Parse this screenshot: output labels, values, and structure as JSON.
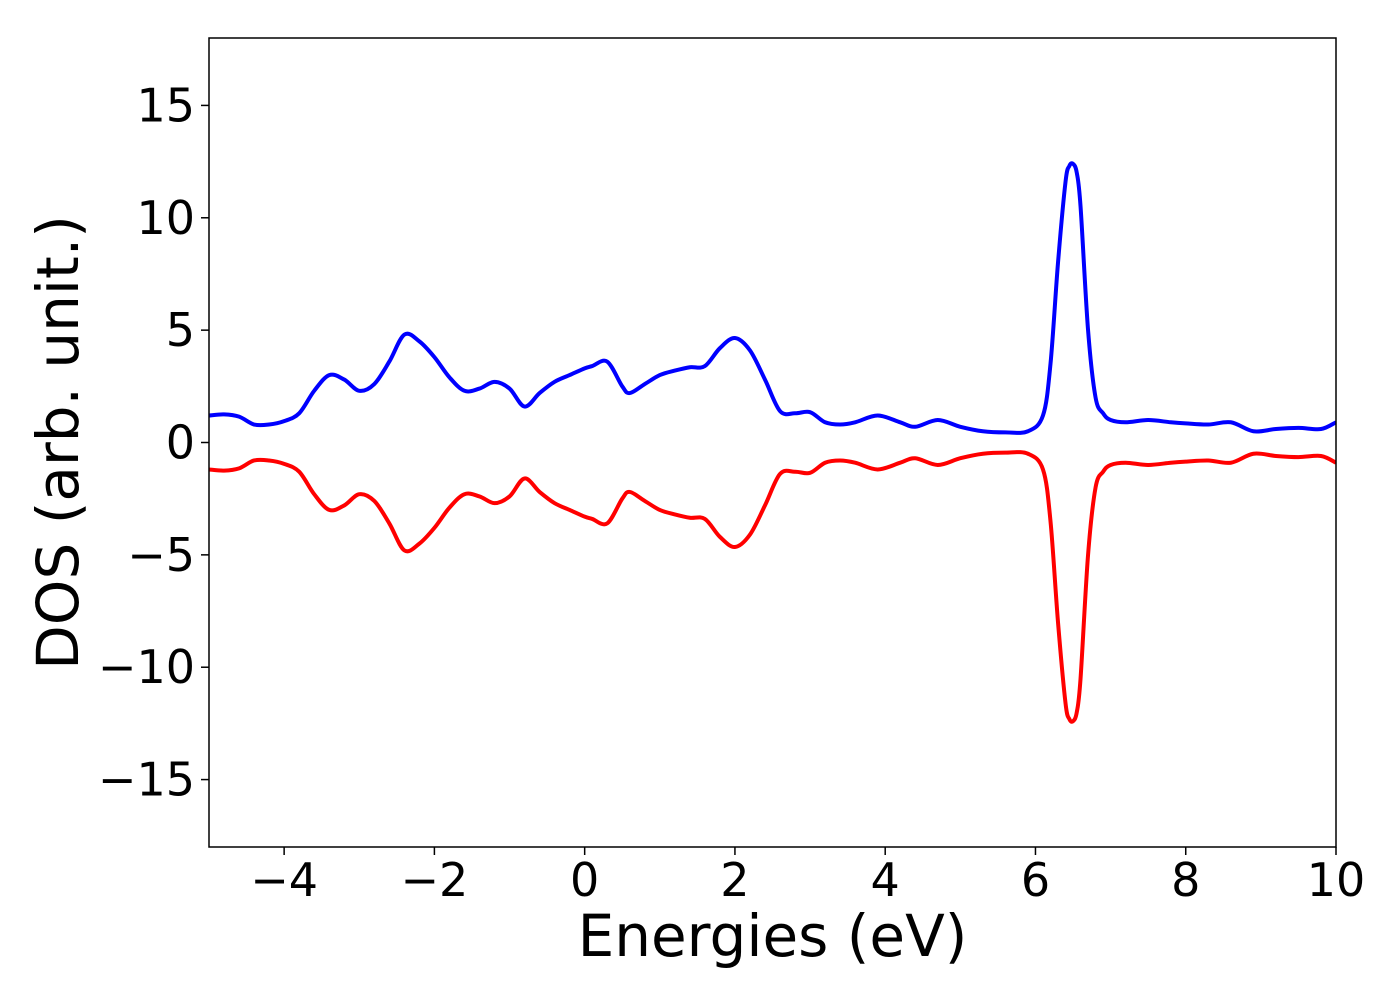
{
  "chart_data": {
    "type": "line",
    "title": "",
    "xlabel": "Energies (eV)",
    "ylabel": "DOS (arb. unit.)",
    "xlim": [
      -5,
      10
    ],
    "ylim": [
      -18,
      18
    ],
    "xticks": [
      -4,
      -2,
      0,
      2,
      4,
      6,
      8,
      10
    ],
    "xtick_labels": [
      "−4",
      "−2",
      "0",
      "2",
      "4",
      "6",
      "8",
      "10"
    ],
    "yticks": [
      -15,
      -10,
      -5,
      0,
      5,
      10,
      15
    ],
    "ytick_labels": [
      "−15",
      "−10",
      "−5",
      "0",
      "5",
      "10",
      "15"
    ],
    "grid": false,
    "legend": false,
    "series": [
      {
        "color": "#0000ff",
        "x": [
          -5.0,
          -4.8,
          -4.6,
          -4.4,
          -4.2,
          -4.0,
          -3.8,
          -3.6,
          -3.4,
          -3.2,
          -3.0,
          -2.8,
          -2.6,
          -2.4,
          -2.2,
          -2.0,
          -1.8,
          -1.6,
          -1.4,
          -1.2,
          -1.0,
          -0.8,
          -0.6,
          -0.4,
          -0.2,
          0.0,
          0.1,
          0.3,
          0.5,
          0.6,
          0.8,
          1.0,
          1.2,
          1.4,
          1.6,
          1.8,
          2.0,
          2.2,
          2.4,
          2.6,
          2.8,
          3.0,
          3.2,
          3.4,
          3.6,
          3.9,
          4.2,
          4.4,
          4.7,
          5.0,
          5.3,
          5.6,
          5.9,
          6.1,
          6.2,
          6.3,
          6.4,
          6.45,
          6.5,
          6.55,
          6.6,
          6.7,
          6.8,
          6.9,
          7.0,
          7.2,
          7.5,
          7.8,
          8.0,
          8.3,
          8.6,
          8.9,
          9.2,
          9.5,
          9.8,
          10.0
        ],
        "y": [
          1.2,
          1.25,
          1.15,
          0.8,
          0.8,
          0.95,
          1.3,
          2.3,
          3.0,
          2.8,
          2.3,
          2.6,
          3.6,
          4.8,
          4.5,
          3.8,
          2.9,
          2.3,
          2.4,
          2.7,
          2.4,
          1.6,
          2.2,
          2.7,
          3.0,
          3.3,
          3.4,
          3.6,
          2.5,
          2.2,
          2.6,
          3.0,
          3.2,
          3.35,
          3.4,
          4.2,
          4.65,
          4.1,
          2.8,
          1.4,
          1.3,
          1.35,
          0.9,
          0.8,
          0.9,
          1.2,
          0.9,
          0.7,
          1.0,
          0.7,
          0.5,
          0.45,
          0.5,
          1.2,
          3.5,
          8.0,
          11.6,
          12.3,
          12.4,
          12.0,
          10.5,
          5.0,
          2.0,
          1.3,
          1.0,
          0.9,
          1.0,
          0.9,
          0.85,
          0.8,
          0.9,
          0.5,
          0.6,
          0.65,
          0.6,
          0.9
        ]
      },
      {
        "color": "#ff0000",
        "x": [
          -5.0,
          -4.8,
          -4.6,
          -4.4,
          -4.2,
          -4.0,
          -3.8,
          -3.6,
          -3.4,
          -3.2,
          -3.0,
          -2.8,
          -2.6,
          -2.4,
          -2.2,
          -2.0,
          -1.8,
          -1.6,
          -1.4,
          -1.2,
          -1.0,
          -0.8,
          -0.6,
          -0.4,
          -0.2,
          0.0,
          0.1,
          0.3,
          0.5,
          0.6,
          0.8,
          1.0,
          1.2,
          1.4,
          1.6,
          1.8,
          2.0,
          2.2,
          2.4,
          2.6,
          2.8,
          3.0,
          3.2,
          3.4,
          3.6,
          3.9,
          4.2,
          4.4,
          4.7,
          5.0,
          5.3,
          5.6,
          5.9,
          6.1,
          6.2,
          6.3,
          6.4,
          6.45,
          6.5,
          6.55,
          6.6,
          6.7,
          6.8,
          6.9,
          7.0,
          7.2,
          7.5,
          7.8,
          8.0,
          8.3,
          8.6,
          8.9,
          9.2,
          9.5,
          9.8,
          10.0
        ],
        "y": [
          -1.2,
          -1.25,
          -1.15,
          -0.8,
          -0.8,
          -0.95,
          -1.3,
          -2.3,
          -3.0,
          -2.8,
          -2.3,
          -2.6,
          -3.6,
          -4.8,
          -4.5,
          -3.8,
          -2.9,
          -2.3,
          -2.4,
          -2.7,
          -2.4,
          -1.6,
          -2.2,
          -2.7,
          -3.0,
          -3.3,
          -3.4,
          -3.6,
          -2.5,
          -2.2,
          -2.6,
          -3.0,
          -3.2,
          -3.35,
          -3.4,
          -4.2,
          -4.65,
          -4.1,
          -2.8,
          -1.4,
          -1.3,
          -1.35,
          -0.9,
          -0.8,
          -0.9,
          -1.2,
          -0.9,
          -0.7,
          -1.0,
          -0.7,
          -0.5,
          -0.45,
          -0.5,
          -1.2,
          -3.5,
          -8.0,
          -11.6,
          -12.3,
          -12.4,
          -12.0,
          -10.5,
          -5.0,
          -2.0,
          -1.3,
          -1.0,
          -0.9,
          -1.0,
          -0.9,
          -0.85,
          -0.8,
          -0.9,
          -0.5,
          -0.6,
          -0.65,
          -0.6,
          -0.9
        ]
      }
    ]
  }
}
